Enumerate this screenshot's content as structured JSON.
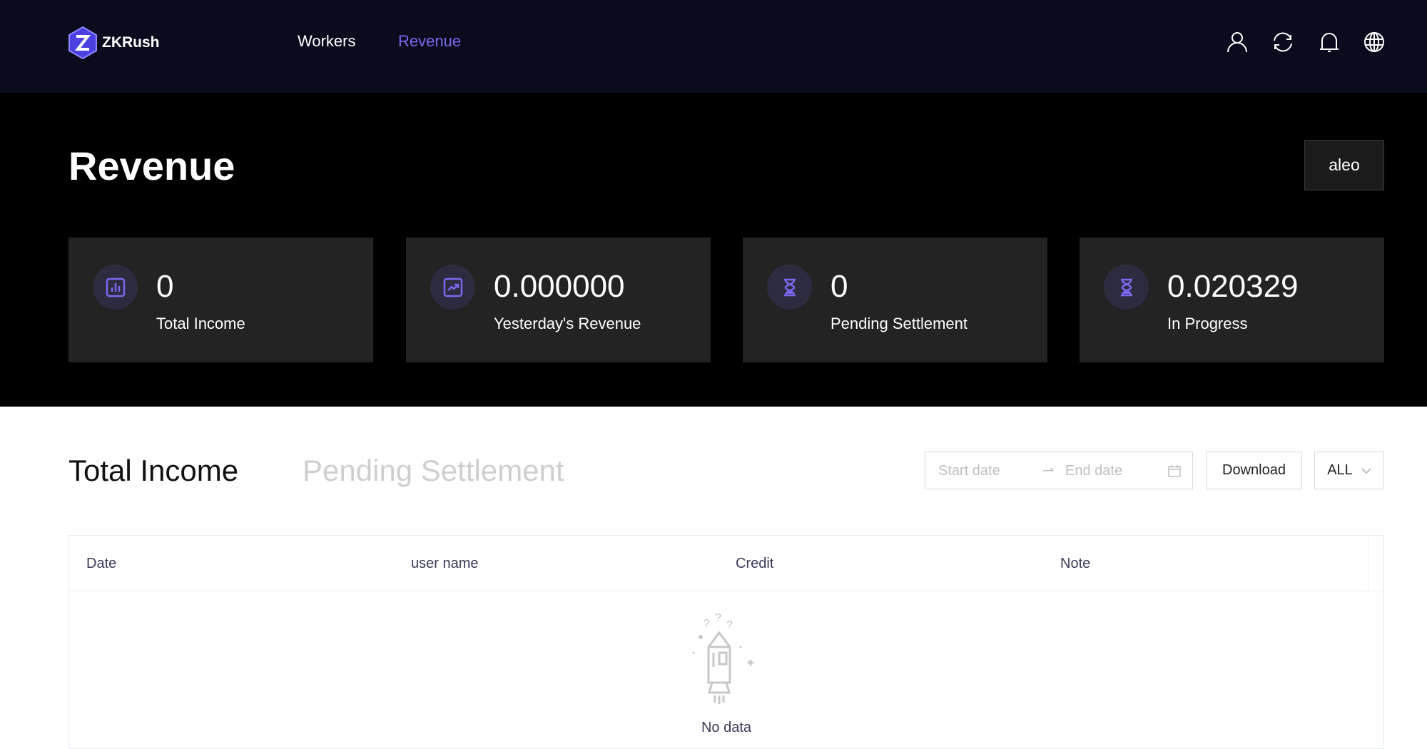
{
  "header": {
    "brand": "ZKRush",
    "nav": [
      {
        "label": "Workers",
        "active": false
      },
      {
        "label": "Revenue",
        "active": true
      }
    ],
    "icons": [
      "user-icon",
      "refresh-icon",
      "bell-icon",
      "globe-icon"
    ],
    "accent": "#7b68ee"
  },
  "hero": {
    "title": "Revenue",
    "coin": "aleo",
    "cards": [
      {
        "icon": "bar-chart-icon",
        "value": "0",
        "label": "Total Income"
      },
      {
        "icon": "trend-up-icon",
        "value": "0.000000",
        "label": "Yesterday's Revenue"
      },
      {
        "icon": "hourglass-icon",
        "value": "0",
        "label": "Pending Settlement"
      },
      {
        "icon": "hourglass-icon",
        "value": "0.020329",
        "label": "In Progress"
      }
    ]
  },
  "main": {
    "tabs": [
      {
        "label": "Total Income",
        "active": true
      },
      {
        "label": "Pending Settlement",
        "active": false
      }
    ],
    "filters": {
      "start_placeholder": "Start date",
      "end_placeholder": "End date",
      "download": "Download",
      "select": "ALL"
    },
    "table": {
      "columns": [
        "Date",
        "user name",
        "Credit",
        "Note"
      ],
      "empty": "No data"
    }
  }
}
